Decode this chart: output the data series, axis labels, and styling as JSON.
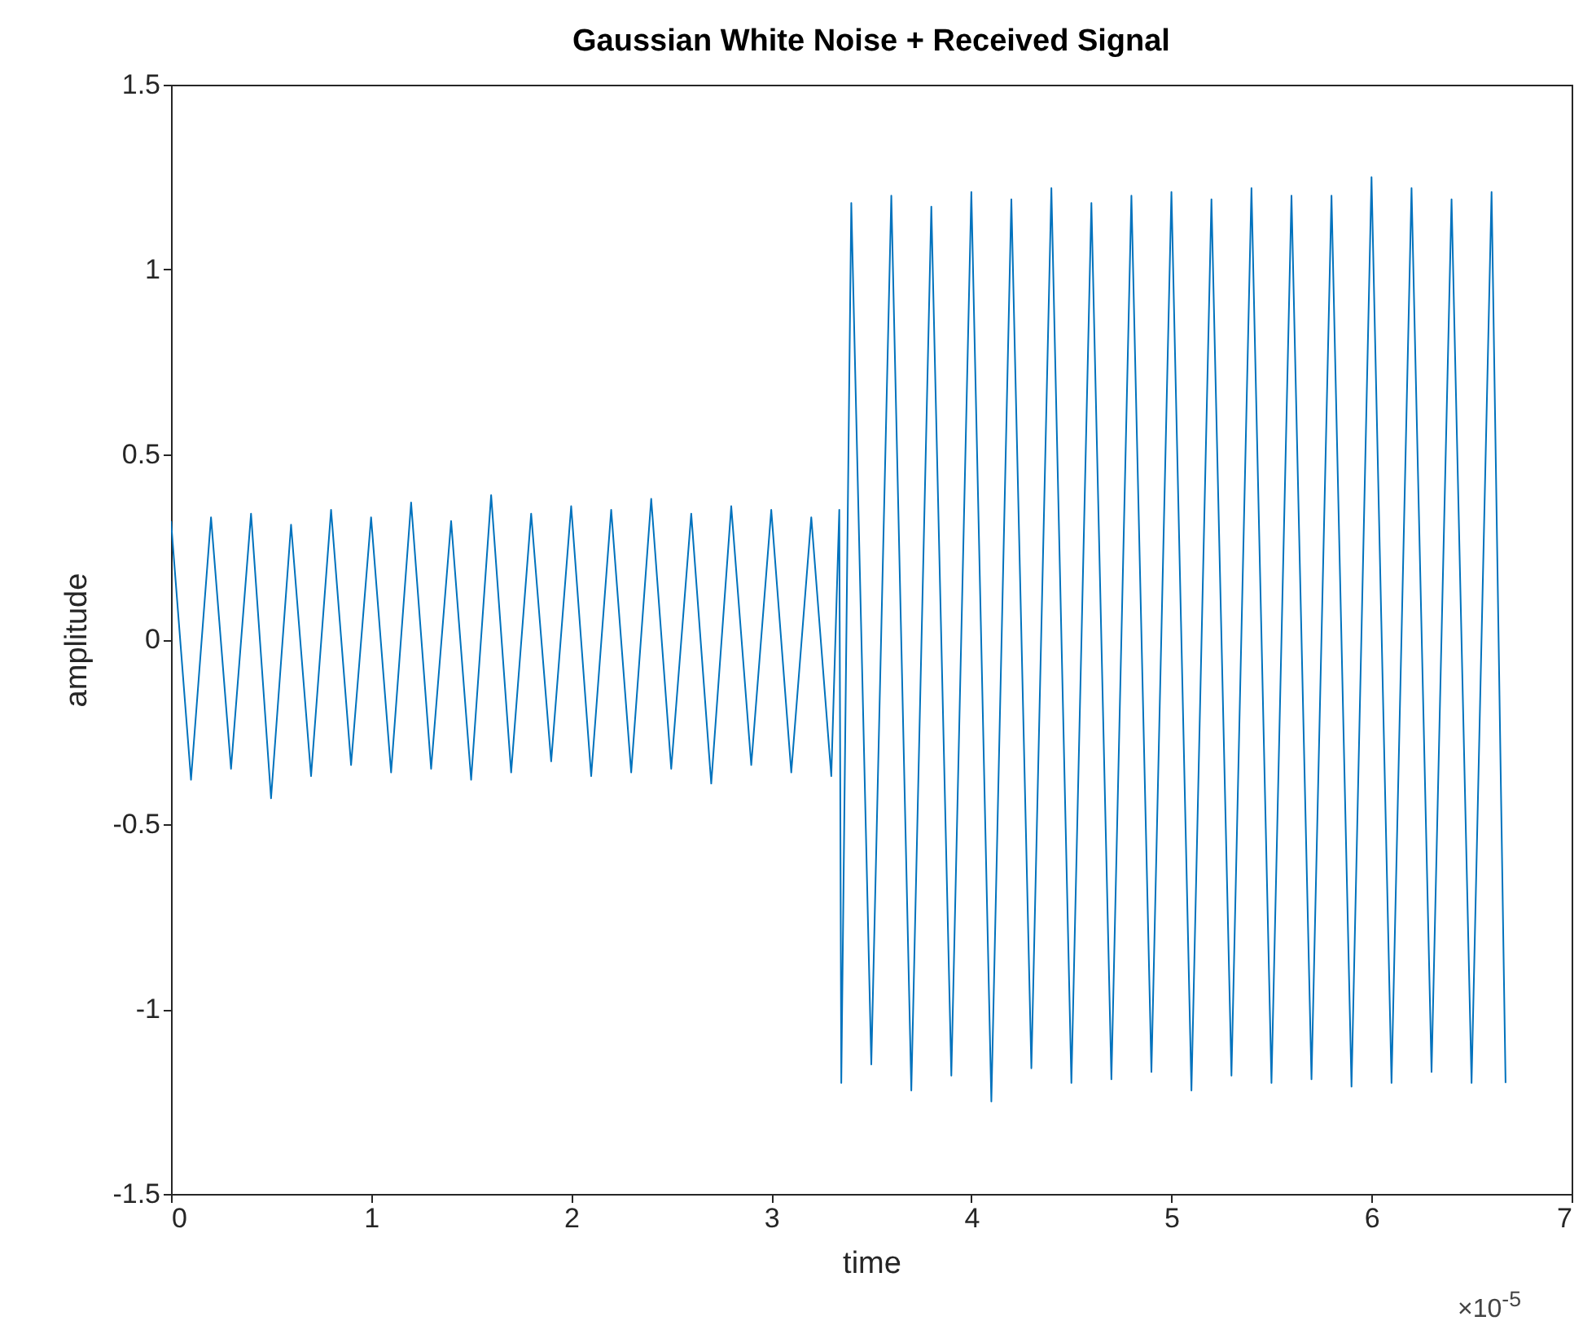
{
  "chart_data": {
    "type": "line",
    "title": "Gaussian White Noise + Received Signal",
    "xlabel": "time",
    "ylabel": "amplitude",
    "annotations": [
      "×10$^{-5}$"
    ],
    "xlim": [
      0,
      7
    ],
    "xticks": [
      0,
      1,
      2,
      3,
      4,
      5,
      6,
      7
    ],
    "ylim": [
      -1.5,
      1.5
    ],
    "yticks": [
      -1.5,
      -1,
      -0.5,
      0,
      0.5,
      1,
      1.5
    ],
    "grid": false,
    "series": [
      {
        "color": "#0072bd",
        "x": [
          0,
          0.1,
          0.2,
          0.3,
          0.4,
          0.5,
          0.6,
          0.7,
          0.8,
          0.9,
          1.0,
          1.1,
          1.2,
          1.3,
          1.4,
          1.5,
          1.6,
          1.7,
          1.8,
          1.9,
          2.0,
          2.1,
          2.2,
          2.3,
          2.4,
          2.5,
          2.6,
          2.7,
          2.8,
          2.9,
          3.0,
          3.1,
          3.2,
          3.3,
          3.34,
          3.35,
          3.4,
          3.5,
          3.6,
          3.7,
          3.8,
          3.9,
          4.0,
          4.1,
          4.2,
          4.3,
          4.4,
          4.5,
          4.6,
          4.7,
          4.8,
          4.9,
          5.0,
          5.1,
          5.2,
          5.3,
          5.4,
          5.5,
          5.6,
          5.7,
          5.8,
          5.9,
          6.0,
          6.1,
          6.2,
          6.3,
          6.4,
          6.5,
          6.6,
          6.67
        ],
        "values": [
          0.32,
          -0.38,
          0.33,
          -0.35,
          0.34,
          -0.43,
          0.31,
          -0.37,
          0.35,
          -0.34,
          0.33,
          -0.36,
          0.37,
          -0.35,
          0.32,
          -0.38,
          0.39,
          -0.36,
          0.34,
          -0.33,
          0.36,
          -0.37,
          0.35,
          -0.36,
          0.38,
          -0.35,
          0.34,
          -0.39,
          0.36,
          -0.34,
          0.35,
          -0.36,
          0.33,
          -0.37,
          0.35,
          -1.2,
          1.18,
          -1.15,
          1.2,
          -1.22,
          1.17,
          -1.18,
          1.21,
          -1.25,
          1.19,
          -1.16,
          1.22,
          -1.2,
          1.18,
          -1.19,
          1.2,
          -1.17,
          1.21,
          -1.22,
          1.19,
          -1.18,
          1.22,
          -1.2,
          1.2,
          -1.19,
          1.2,
          -1.21,
          1.25,
          -1.2,
          1.22,
          -1.17,
          1.19,
          -1.2,
          1.21,
          -1.2
        ]
      }
    ]
  }
}
